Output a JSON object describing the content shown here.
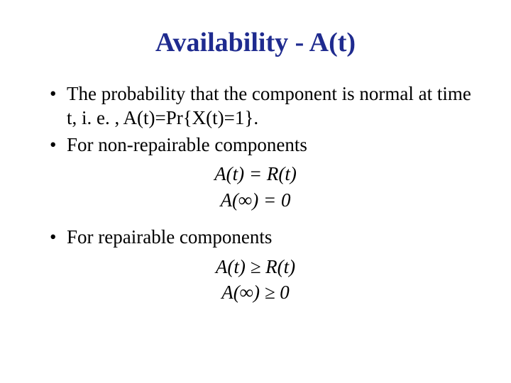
{
  "title": {
    "text": "Availability - A(t)",
    "color": "#1f2b8f",
    "fontsize": 38
  },
  "body": {
    "fontsize": 27,
    "color": "#000000"
  },
  "bullets": [
    {
      "text": "The probability that the component is normal at time t, i. e. , A(t)=Pr{X(t)=1}."
    },
    {
      "text": "For non-repairable components"
    }
  ],
  "formulas_nonrepairable": {
    "line1": "A(t) = R(t)",
    "line2": "A(∞) = 0"
  },
  "bullet_repairable": {
    "text": "For repairable components"
  },
  "formulas_repairable": {
    "line1": "A(t) ≥ R(t)",
    "line2": "A(∞) ≥ 0"
  },
  "background_color": "#ffffff"
}
